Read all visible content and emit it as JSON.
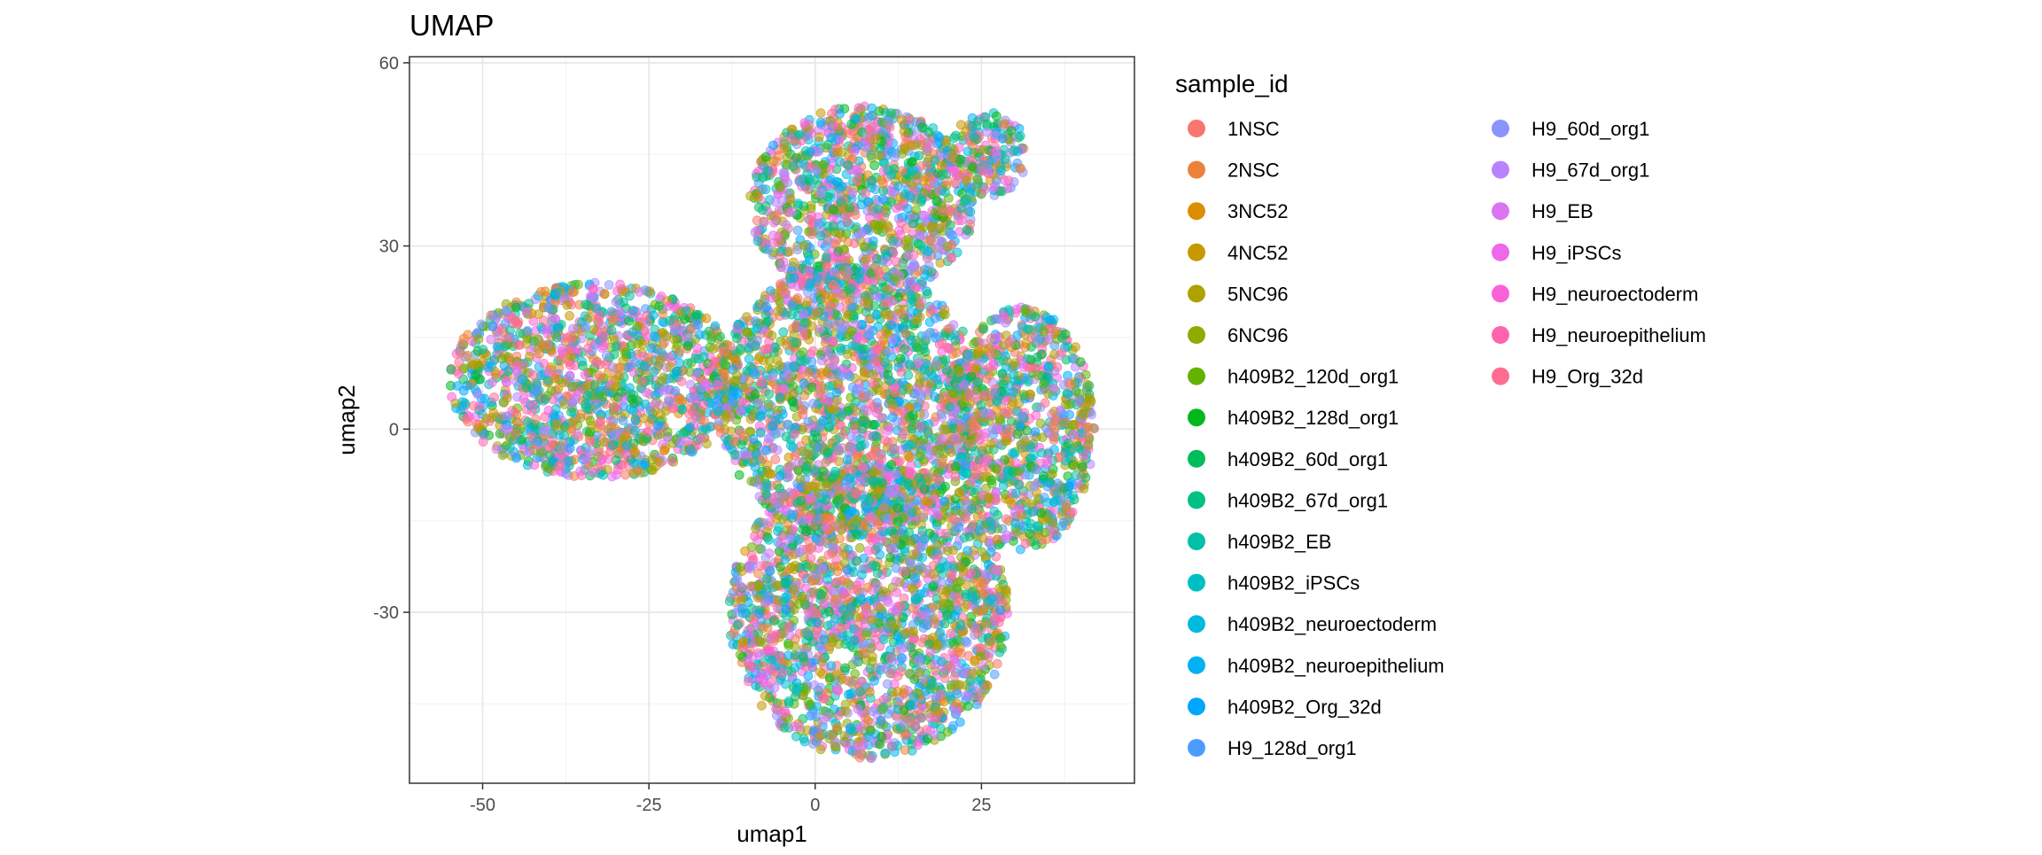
{
  "chart_data": {
    "type": "scatter",
    "title": "UMAP",
    "xlabel": "umap1",
    "ylabel": "umap2",
    "xlim": [
      -61,
      48
    ],
    "ylim": [
      -58,
      61
    ],
    "x_ticks": [
      -50,
      -25,
      0,
      25
    ],
    "x_tick_labels": [
      "-50",
      "-25",
      "0",
      "25"
    ],
    "y_ticks": [
      60,
      30,
      0,
      -30
    ],
    "y_tick_labels": [
      "60",
      "30",
      "0",
      "-30"
    ],
    "grid": true,
    "legend_title": "sample_id",
    "legend_placement": "right",
    "series": [
      {
        "name": "1NSC",
        "color": "#F8766D"
      },
      {
        "name": "2NSC",
        "color": "#EC8239"
      },
      {
        "name": "3NC52",
        "color": "#DB8E00"
      },
      {
        "name": "4NC52",
        "color": "#C79800"
      },
      {
        "name": "5NC96",
        "color": "#AEA200"
      },
      {
        "name": "6NC96",
        "color": "#8FAA00"
      },
      {
        "name": "h409B2_120d_org1",
        "color": "#64B200"
      },
      {
        "name": "h409B2_128d_org1",
        "color": "#00B81B"
      },
      {
        "name": "h409B2_60d_org1",
        "color": "#00BD5C"
      },
      {
        "name": "h409B2_67d_org1",
        "color": "#00C085"
      },
      {
        "name": "h409B2_EB",
        "color": "#00C1A7"
      },
      {
        "name": "h409B2_iPSCs",
        "color": "#00BFC4"
      },
      {
        "name": "h409B2_neuroectoderm",
        "color": "#00BADE"
      },
      {
        "name": "h409B2_neuroepithelium",
        "color": "#00B2F3"
      },
      {
        "name": "h409B2_Org_32d",
        "color": "#00A6FF"
      },
      {
        "name": "H9_128d_org1",
        "color": "#4C9CFF"
      },
      {
        "name": "H9_60d_org1",
        "color": "#8B93FF"
      },
      {
        "name": "H9_67d_org1",
        "color": "#B983FF"
      },
      {
        "name": "H9_EB",
        "color": "#DA74F2"
      },
      {
        "name": "H9_iPSCs",
        "color": "#EF67EB"
      },
      {
        "name": "H9_neuroectoderm",
        "color": "#FB61D7"
      },
      {
        "name": "H9_neuroepithelium",
        "color": "#FF64B0"
      },
      {
        "name": "H9_Org_32d",
        "color": "#FF6C91"
      }
    ],
    "regions": [
      {
        "name": "left-lobe",
        "center": [
          -33,
          8
        ],
        "radius": [
          22,
          16
        ]
      },
      {
        "name": "top-lobe",
        "center": [
          7,
          37
        ],
        "radius": [
          17,
          16
        ]
      },
      {
        "name": "bottom-lobe",
        "center": [
          8,
          -30
        ],
        "radius": [
          21,
          24
        ]
      },
      {
        "name": "center",
        "center": [
          5,
          5
        ],
        "radius": [
          20,
          22
        ]
      },
      {
        "name": "right-lobe",
        "center": [
          31,
          0
        ],
        "radius": [
          11,
          20
        ]
      },
      {
        "name": "top-right-tail",
        "center": [
          26,
          45
        ],
        "radius": [
          6,
          7
        ]
      }
    ]
  }
}
